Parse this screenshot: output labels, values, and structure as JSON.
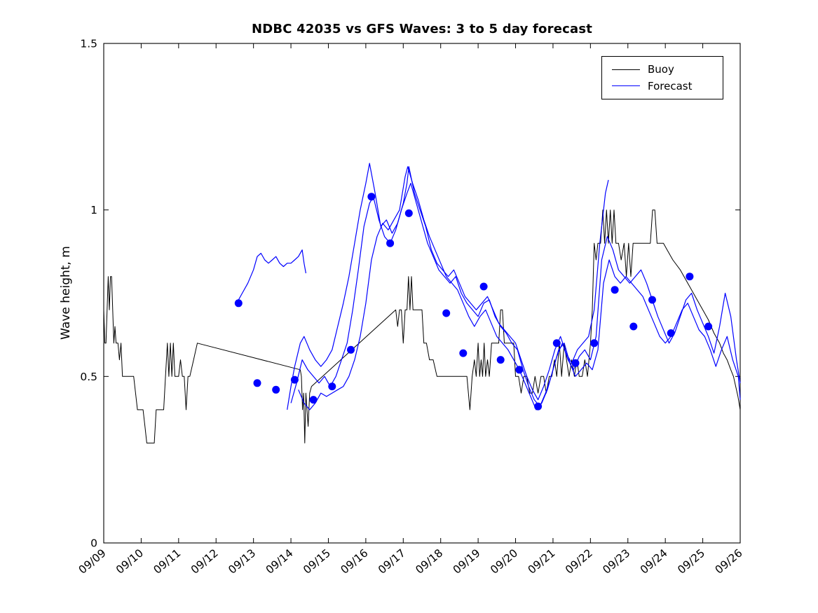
{
  "chart_data": {
    "type": "line",
    "title": "NDBC 42035 vs GFS Waves: 3 to 5 day forecast",
    "xlabel": "",
    "ylabel": "Wave height, m",
    "ylim": [
      0,
      1.5
    ],
    "yticks": [
      0,
      0.5,
      1,
      1.5
    ],
    "ytick_labels": [
      "0",
      "0.5",
      "1",
      "1.5"
    ],
    "xlim": [
      0,
      17
    ],
    "x_encoding": "days after 09/09, one tick per day",
    "xtick_labels": [
      "09/09",
      "09/10",
      "09/11",
      "09/12",
      "09/13",
      "09/14",
      "09/15",
      "09/16",
      "09/17",
      "09/18",
      "09/19",
      "09/20",
      "09/21",
      "09/22",
      "09/23",
      "09/24",
      "09/25",
      "09/26"
    ],
    "grid": false,
    "legend_position": "top-right-inside",
    "legend": [
      {
        "label": "Buoy",
        "color": "#000000"
      },
      {
        "label": "Forecast",
        "color": "#0000ff"
      }
    ],
    "series": [
      {
        "name": "Buoy",
        "color": "#000000",
        "width": 1.0,
        "x": [
          0.0,
          0.03,
          0.06,
          0.09,
          0.12,
          0.15,
          0.18,
          0.21,
          0.24,
          0.27,
          0.3,
          0.33,
          0.38,
          0.42,
          0.46,
          0.5,
          0.55,
          0.6,
          0.65,
          0.7,
          0.75,
          0.8,
          0.85,
          0.9,
          0.95,
          1.0,
          1.05,
          1.1,
          1.15,
          1.2,
          1.25,
          1.3,
          1.35,
          1.4,
          1.45,
          1.5,
          1.55,
          1.6,
          1.65,
          1.7,
          1.74,
          1.78,
          1.82,
          1.86,
          1.9,
          1.95,
          2.0,
          2.05,
          2.1,
          2.15,
          2.2,
          2.25,
          2.3,
          2.4,
          2.5,
          5.25,
          5.28,
          5.31,
          5.34,
          5.37,
          5.4,
          5.43,
          5.46,
          5.5,
          5.55,
          7.8,
          7.85,
          7.9,
          7.95,
          8.0,
          8.05,
          8.1,
          8.14,
          8.18,
          8.22,
          8.26,
          8.32,
          8.4,
          8.5,
          8.55,
          8.62,
          8.7,
          8.8,
          8.9,
          9.0,
          9.1,
          9.2,
          9.3,
          9.4,
          9.5,
          9.6,
          9.7,
          9.78,
          9.84,
          9.9,
          9.95,
          10.0,
          10.04,
          10.08,
          10.12,
          10.16,
          10.2,
          10.25,
          10.3,
          10.36,
          10.42,
          10.48,
          10.55,
          10.6,
          10.65,
          10.7,
          10.78,
          10.86,
          10.95,
          11.0,
          11.08,
          11.15,
          11.22,
          11.3,
          11.38,
          11.45,
          11.52,
          11.6,
          11.68,
          11.75,
          11.82,
          11.9,
          11.97,
          12.04,
          12.1,
          12.17,
          12.23,
          12.3,
          12.36,
          12.43,
          12.5,
          12.57,
          12.64,
          12.7,
          12.78,
          12.85,
          12.92,
          13.0,
          13.05,
          13.1,
          13.15,
          13.2,
          13.27,
          13.33,
          13.38,
          13.43,
          13.48,
          13.53,
          13.58,
          13.63,
          13.68,
          13.75,
          13.82,
          13.9,
          13.96,
          14.02,
          14.08,
          14.14,
          14.2,
          14.3,
          14.4,
          14.5,
          14.6,
          14.66,
          14.72,
          14.78,
          14.85,
          14.95,
          15.05,
          15.2,
          15.4,
          15.6,
          15.8,
          16.0,
          16.15,
          16.3,
          16.45,
          16.55,
          16.65,
          16.75,
          16.82,
          16.88,
          16.94,
          17.0
        ],
        "y": [
          0.7,
          0.6,
          0.6,
          0.7,
          0.8,
          0.7,
          0.8,
          0.8,
          0.7,
          0.6,
          0.65,
          0.6,
          0.6,
          0.55,
          0.6,
          0.5,
          0.5,
          0.5,
          0.5,
          0.5,
          0.5,
          0.5,
          0.45,
          0.4,
          0.4,
          0.4,
          0.4,
          0.35,
          0.3,
          0.3,
          0.3,
          0.3,
          0.3,
          0.4,
          0.4,
          0.4,
          0.4,
          0.4,
          0.5,
          0.6,
          0.5,
          0.6,
          0.5,
          0.6,
          0.5,
          0.5,
          0.5,
          0.55,
          0.5,
          0.5,
          0.4,
          0.5,
          0.5,
          0.55,
          0.6,
          0.52,
          0.5,
          0.4,
          0.45,
          0.3,
          0.45,
          0.4,
          0.35,
          0.45,
          0.47,
          0.7,
          0.65,
          0.7,
          0.7,
          0.6,
          0.7,
          0.7,
          0.8,
          0.7,
          0.8,
          0.7,
          0.7,
          0.7,
          0.7,
          0.6,
          0.6,
          0.55,
          0.55,
          0.5,
          0.5,
          0.5,
          0.5,
          0.5,
          0.5,
          0.5,
          0.5,
          0.5,
          0.4,
          0.5,
          0.55,
          0.5,
          0.6,
          0.5,
          0.55,
          0.5,
          0.6,
          0.5,
          0.55,
          0.5,
          0.6,
          0.6,
          0.6,
          0.6,
          0.7,
          0.7,
          0.6,
          0.6,
          0.6,
          0.6,
          0.5,
          0.5,
          0.45,
          0.5,
          0.5,
          0.45,
          0.45,
          0.5,
          0.45,
          0.5,
          0.5,
          0.45,
          0.5,
          0.5,
          0.55,
          0.5,
          0.6,
          0.5,
          0.6,
          0.55,
          0.5,
          0.55,
          0.5,
          0.55,
          0.5,
          0.5,
          0.55,
          0.5,
          0.6,
          0.7,
          0.9,
          0.85,
          0.9,
          0.9,
          1.0,
          0.9,
          1.0,
          0.9,
          1.0,
          0.9,
          1.0,
          0.9,
          0.9,
          0.85,
          0.9,
          0.8,
          0.9,
          0.8,
          0.9,
          0.9,
          0.9,
          0.9,
          0.9,
          0.9,
          1.0,
          1.0,
          0.9,
          0.9,
          0.9,
          0.88,
          0.85,
          0.82,
          0.78,
          0.74,
          0.7,
          0.67,
          0.63,
          0.6,
          0.57,
          0.55,
          0.52,
          0.5,
          0.47,
          0.44,
          0.4
        ]
      },
      {
        "name": "Forecast run 1",
        "color": "#0000ff",
        "width": 1.2,
        "x": [
          3.55,
          3.7,
          3.85,
          4.0,
          4.1,
          4.2,
          4.3,
          4.4,
          4.5,
          4.6,
          4.7,
          4.8,
          4.9,
          5.0,
          5.1,
          5.2,
          5.3,
          5.35,
          5.4
        ],
        "y": [
          0.72,
          0.75,
          0.78,
          0.82,
          0.86,
          0.87,
          0.85,
          0.84,
          0.85,
          0.86,
          0.84,
          0.83,
          0.84,
          0.84,
          0.85,
          0.86,
          0.88,
          0.84,
          0.81
        ]
      },
      {
        "name": "Forecast run 2",
        "color": "#0000ff",
        "width": 1.2,
        "x": [
          4.9,
          5.0,
          5.1,
          5.25,
          5.35,
          5.5,
          5.65,
          5.8,
          5.95,
          6.1,
          6.25,
          6.4,
          6.55,
          6.7,
          6.85,
          7.0,
          7.1,
          7.25,
          7.4,
          7.55,
          7.7,
          7.85,
          8.0,
          8.1,
          8.15,
          8.3,
          8.45,
          8.6,
          8.75,
          8.9,
          9.05,
          9.2,
          9.35,
          9.5,
          9.65,
          9.8,
          9.95,
          10.1,
          10.25,
          10.4,
          10.55,
          10.7,
          10.85,
          11.0,
          11.15,
          11.3,
          11.45,
          11.6,
          11.75,
          11.9,
          12.05,
          12.2,
          12.35,
          12.5,
          12.65,
          12.8,
          12.95,
          13.1,
          13.25,
          13.4,
          13.48
        ],
        "y": [
          0.4,
          0.47,
          0.53,
          0.6,
          0.62,
          0.58,
          0.55,
          0.53,
          0.55,
          0.58,
          0.65,
          0.72,
          0.8,
          0.9,
          1.0,
          1.08,
          1.14,
          1.05,
          0.95,
          0.97,
          0.93,
          0.96,
          1.02,
          1.08,
          1.13,
          1.05,
          1.0,
          0.95,
          0.88,
          0.84,
          0.82,
          0.8,
          0.82,
          0.78,
          0.74,
          0.72,
          0.7,
          0.72,
          0.74,
          0.7,
          0.66,
          0.64,
          0.62,
          0.6,
          0.55,
          0.5,
          0.46,
          0.43,
          0.47,
          0.52,
          0.58,
          0.62,
          0.57,
          0.54,
          0.58,
          0.6,
          0.62,
          0.7,
          0.9,
          1.05,
          1.09
        ]
      },
      {
        "name": "Forecast run 3",
        "color": "#0000ff",
        "width": 1.2,
        "x": [
          5.0,
          5.15,
          5.3,
          5.45,
          5.6,
          5.75,
          5.9,
          6.05,
          6.2,
          6.35,
          6.5,
          6.65,
          6.8,
          6.95,
          7.1,
          7.2,
          7.35,
          7.5,
          7.65,
          7.8,
          7.95,
          8.1,
          8.2,
          8.35,
          8.5,
          8.65,
          8.8,
          8.95,
          9.1,
          9.25,
          9.4,
          9.55,
          9.7,
          9.85,
          10.0,
          10.15,
          10.3,
          10.45,
          10.6,
          10.75,
          10.9,
          11.05,
          11.2,
          11.35,
          11.5,
          11.65,
          11.8,
          11.95,
          12.1,
          12.25,
          12.4,
          12.55,
          12.7,
          12.85,
          13.0,
          13.15,
          13.3,
          13.45,
          13.6,
          13.75,
          13.9,
          14.05,
          14.2,
          14.35,
          14.5,
          14.65,
          14.8,
          14.95,
          15.1,
          15.25,
          15.4,
          15.55,
          15.7,
          15.85,
          16.0,
          16.15,
          16.3,
          16.45,
          16.6,
          16.75,
          16.9,
          17.0
        ],
        "y": [
          0.42,
          0.48,
          0.55,
          0.52,
          0.5,
          0.48,
          0.5,
          0.47,
          0.5,
          0.55,
          0.6,
          0.7,
          0.82,
          0.95,
          1.02,
          1.04,
          0.97,
          0.92,
          0.9,
          0.94,
          1.0,
          1.05,
          1.08,
          1.02,
          0.96,
          0.9,
          0.86,
          0.82,
          0.8,
          0.78,
          0.8,
          0.75,
          0.72,
          0.7,
          0.68,
          0.72,
          0.73,
          0.68,
          0.65,
          0.63,
          0.6,
          0.58,
          0.52,
          0.47,
          0.43,
          0.41,
          0.45,
          0.5,
          0.56,
          0.6,
          0.55,
          0.52,
          0.56,
          0.58,
          0.55,
          0.62,
          0.85,
          0.92,
          0.88,
          0.82,
          0.8,
          0.78,
          0.8,
          0.82,
          0.78,
          0.73,
          0.68,
          0.64,
          0.6,
          0.63,
          0.68,
          0.73,
          0.75,
          0.7,
          0.66,
          0.62,
          0.57,
          0.65,
          0.75,
          0.68,
          0.55,
          0.48
        ]
      },
      {
        "name": "Forecast run 4",
        "color": "#0000ff",
        "width": 1.2,
        "x": [
          5.2,
          5.35,
          5.5,
          5.65,
          5.8,
          5.95,
          6.1,
          6.25,
          6.4,
          6.55,
          6.7,
          6.85,
          7.0,
          7.15,
          7.3,
          7.45,
          7.6,
          7.75,
          7.9,
          8.05,
          8.12,
          8.25,
          8.4,
          8.55,
          8.7,
          8.85,
          9.0,
          9.15,
          9.3,
          9.45,
          9.6,
          9.75,
          9.9,
          10.05,
          10.2,
          10.35,
          10.5,
          10.65,
          10.8,
          10.95,
          11.1,
          11.25,
          11.4,
          11.55,
          11.7,
          11.85,
          12.0,
          12.15,
          12.3,
          12.45,
          12.6,
          12.75,
          12.9,
          13.05,
          13.2,
          13.35,
          13.5,
          13.65,
          13.8,
          13.95,
          14.1,
          14.25,
          14.4,
          14.55,
          14.7,
          14.85,
          15.0,
          15.15,
          15.3,
          15.45,
          15.6,
          15.75,
          15.9,
          16.05,
          16.2,
          16.35,
          16.5,
          16.65,
          16.8,
          16.95,
          17.0
        ],
        "y": [
          0.46,
          0.42,
          0.4,
          0.42,
          0.45,
          0.44,
          0.45,
          0.46,
          0.47,
          0.5,
          0.55,
          0.62,
          0.72,
          0.85,
          0.92,
          0.96,
          0.94,
          0.97,
          1.0,
          1.1,
          1.13,
          1.08,
          1.03,
          0.97,
          0.92,
          0.88,
          0.84,
          0.8,
          0.78,
          0.76,
          0.72,
          0.68,
          0.65,
          0.68,
          0.7,
          0.66,
          0.62,
          0.6,
          0.58,
          0.55,
          0.52,
          0.48,
          0.44,
          0.4,
          0.42,
          0.46,
          0.52,
          0.58,
          0.6,
          0.54,
          0.5,
          0.52,
          0.54,
          0.52,
          0.58,
          0.78,
          0.85,
          0.8,
          0.78,
          0.8,
          0.78,
          0.76,
          0.74,
          0.7,
          0.66,
          0.62,
          0.6,
          0.62,
          0.66,
          0.7,
          0.72,
          0.68,
          0.64,
          0.62,
          0.58,
          0.53,
          0.58,
          0.62,
          0.55,
          0.5,
          0.43
        ]
      }
    ],
    "markers": {
      "name": "Forecast markers",
      "color": "#0000ff",
      "radius": 5.5,
      "x": [
        3.6,
        4.1,
        4.6,
        5.1,
        5.6,
        6.1,
        6.6,
        7.15,
        7.65,
        8.15,
        9.15,
        9.6,
        10.15,
        10.6,
        11.1,
        11.6,
        12.1,
        12.6,
        13.1,
        13.65,
        14.15,
        14.65,
        15.15,
        15.65,
        16.15
      ],
      "y": [
        0.72,
        0.48,
        0.46,
        0.49,
        0.43,
        0.47,
        0.58,
        1.04,
        0.9,
        0.99,
        0.69,
        0.57,
        0.77,
        0.55,
        0.52,
        0.41,
        0.6,
        0.54,
        0.6,
        0.76,
        0.65,
        0.73,
        0.63,
        0.8,
        0.65
      ]
    }
  }
}
